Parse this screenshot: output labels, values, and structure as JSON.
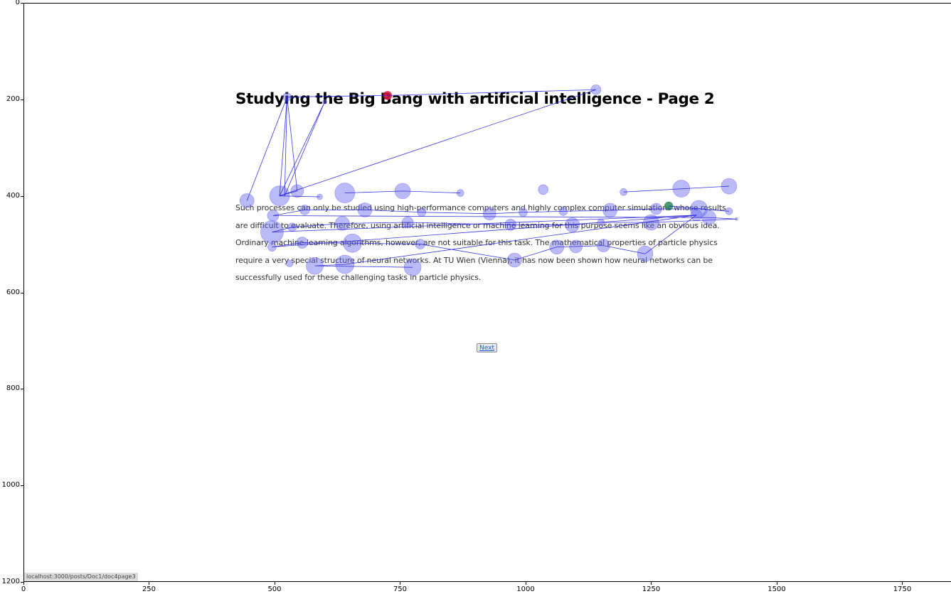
{
  "page": {
    "title": "Studying the Big Bang with artificial intelligence - Page 2",
    "paragraph_lines": [
      "Such processes can only be studied using high-performance computers and highly complex computer simulations whose results",
      "are difficult to evaluate. Therefore, using artificial intelligence or machine learning for this purpose seems like an obvious idea.",
      "Ordinary machine-learning algorithms, however, are not suitable for this task. The mathematical properties of particle physics",
      "require a very special structure of neural networks. At TU Wien (Vienna), it has now been shown how neural networks can be",
      "successfully used for these challenging tasks in particle physics."
    ],
    "next_label": "Next",
    "status_url": "localhost:3000/posts/Doc1/doc4page3"
  },
  "chart_data": {
    "type": "scatter",
    "xlim": [
      0,
      1920
    ],
    "ylim": [
      1200,
      0
    ],
    "x_ticks": [
      0,
      250,
      500,
      750,
      1000,
      1250,
      1500,
      1750
    ],
    "y_ticks": [
      0,
      200,
      400,
      600,
      800,
      1000,
      1200
    ],
    "x_tick_labels": [
      "0",
      "250",
      "500",
      "750",
      "1000",
      "1250",
      "1500",
      "1750"
    ],
    "y_tick_labels": [
      "0",
      "200",
      "400",
      "600",
      "800",
      "1000",
      "1200"
    ],
    "grid": false,
    "colors": {
      "fixation": "#6666ee",
      "saccade": "#2222dd",
      "first": "#2e8b57",
      "last": "#dc143c"
    },
    "fixations": [
      {
        "x": 1285,
        "y": 421,
        "d": 6,
        "role": "first"
      },
      {
        "x": 1345,
        "y": 427,
        "d": 12
      },
      {
        "x": 1405,
        "y": 432,
        "d": 5
      },
      {
        "x": 1260,
        "y": 427,
        "d": 8
      },
      {
        "x": 1168,
        "y": 430,
        "d": 10
      },
      {
        "x": 1075,
        "y": 432,
        "d": 6
      },
      {
        "x": 995,
        "y": 434,
        "d": 6
      },
      {
        "x": 928,
        "y": 437,
        "d": 9
      },
      {
        "x": 793,
        "y": 434,
        "d": 6
      },
      {
        "x": 680,
        "y": 429,
        "d": 10
      },
      {
        "x": 560,
        "y": 429,
        "d": 7
      },
      {
        "x": 497,
        "y": 441,
        "d": 8
      },
      {
        "x": 1365,
        "y": 445,
        "d": 10
      },
      {
        "x": 1420,
        "y": 448,
        "d": 2
      },
      {
        "x": 1250,
        "y": 455,
        "d": 11
      },
      {
        "x": 1150,
        "y": 455,
        "d": 5
      },
      {
        "x": 1093,
        "y": 460,
        "d": 10
      },
      {
        "x": 970,
        "y": 460,
        "d": 8
      },
      {
        "x": 765,
        "y": 455,
        "d": 8
      },
      {
        "x": 635,
        "y": 457,
        "d": 10
      },
      {
        "x": 535,
        "y": 465,
        "d": 6
      },
      {
        "x": 495,
        "y": 475,
        "d": 16
      },
      {
        "x": 1340,
        "y": 440,
        "d": 8
      },
      {
        "x": 1238,
        "y": 520,
        "d": 11
      },
      {
        "x": 1155,
        "y": 503,
        "d": 9
      },
      {
        "x": 1100,
        "y": 505,
        "d": 9
      },
      {
        "x": 1062,
        "y": 506,
        "d": 10
      },
      {
        "x": 978,
        "y": 533,
        "d": 10
      },
      {
        "x": 790,
        "y": 500,
        "d": 7
      },
      {
        "x": 655,
        "y": 498,
        "d": 13
      },
      {
        "x": 555,
        "y": 497,
        "d": 8
      },
      {
        "x": 495,
        "y": 506,
        "d": 6
      },
      {
        "x": 530,
        "y": 540,
        "d": 5
      },
      {
        "x": 580,
        "y": 545,
        "d": 12
      },
      {
        "x": 640,
        "y": 542,
        "d": 13
      },
      {
        "x": 775,
        "y": 548,
        "d": 12
      },
      {
        "x": 445,
        "y": 410,
        "d": 10
      },
      {
        "x": 510,
        "y": 400,
        "d": 14
      },
      {
        "x": 545,
        "y": 390,
        "d": 9
      },
      {
        "x": 590,
        "y": 402,
        "d": 4
      },
      {
        "x": 640,
        "y": 394,
        "d": 14
      },
      {
        "x": 755,
        "y": 390,
        "d": 11
      },
      {
        "x": 870,
        "y": 394,
        "d": 5
      },
      {
        "x": 1035,
        "y": 387,
        "d": 7
      },
      {
        "x": 1195,
        "y": 392,
        "d": 5
      },
      {
        "x": 1310,
        "y": 385,
        "d": 12
      },
      {
        "x": 1405,
        "y": 380,
        "d": 11
      },
      {
        "x": 525,
        "y": 195,
        "d": 6
      },
      {
        "x": 600,
        "y": 205,
        "d": 3
      },
      {
        "x": 1140,
        "y": 180,
        "d": 7
      },
      {
        "x": 725,
        "y": 192,
        "d": 6,
        "role": "last"
      }
    ],
    "saccade_paths": [
      [
        [
          1285,
          421
        ],
        [
          1405,
          432
        ],
        [
          1345,
          427
        ],
        [
          1260,
          427
        ],
        [
          1168,
          430
        ],
        [
          1075,
          432
        ],
        [
          995,
          434
        ],
        [
          928,
          437
        ],
        [
          793,
          434
        ],
        [
          680,
          429
        ],
        [
          560,
          429
        ],
        [
          497,
          441
        ],
        [
          1365,
          445
        ],
        [
          1420,
          448
        ],
        [
          1250,
          455
        ],
        [
          1150,
          455
        ],
        [
          1093,
          460
        ],
        [
          970,
          460
        ],
        [
          765,
          455
        ],
        [
          635,
          457
        ],
        [
          535,
          465
        ],
        [
          495,
          475
        ],
        [
          1340,
          440
        ],
        [
          1238,
          520
        ],
        [
          1155,
          503
        ],
        [
          1100,
          505
        ],
        [
          1062,
          506
        ],
        [
          978,
          533
        ],
        [
          790,
          500
        ],
        [
          655,
          498
        ],
        [
          555,
          497
        ],
        [
          495,
          506
        ],
        [
          1340,
          440
        ],
        [
          640,
          542
        ],
        [
          580,
          545
        ],
        [
          775,
          548
        ]
      ],
      [
        [
          445,
          410
        ],
        [
          525,
          195
        ],
        [
          545,
          390
        ],
        [
          510,
          400
        ],
        [
          590,
          402
        ]
      ],
      [
        [
          510,
          400
        ],
        [
          525,
          195
        ],
        [
          520,
          400
        ],
        [
          600,
          205
        ],
        [
          510,
          400
        ],
        [
          1140,
          180
        ],
        [
          725,
          192
        ],
        [
          525,
          195
        ]
      ],
      [
        [
          640,
          394
        ],
        [
          755,
          390
        ],
        [
          870,
          394
        ]
      ],
      [
        [
          1195,
          392
        ],
        [
          1405,
          380
        ]
      ]
    ]
  }
}
